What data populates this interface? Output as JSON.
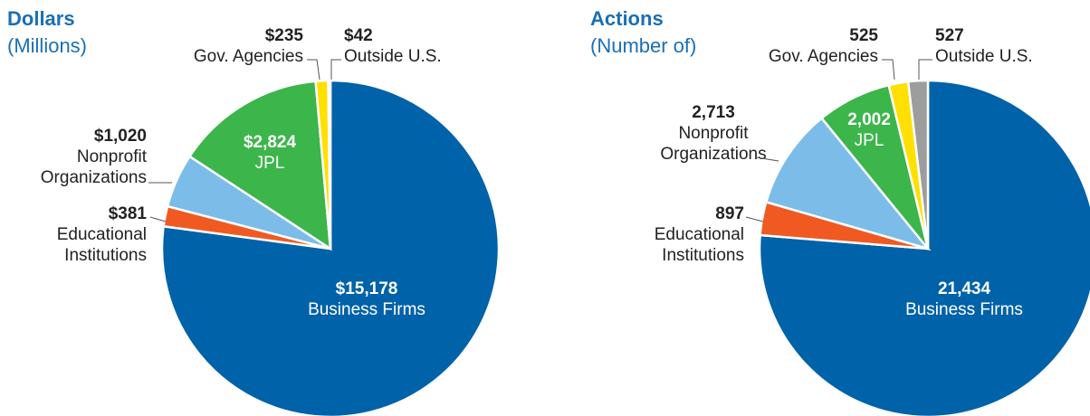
{
  "chart_data": [
    {
      "type": "pie",
      "title": "Dollars",
      "subtitle": "(Millions)",
      "categories": [
        "Business Firms",
        "Educational Institutions",
        "Nonprofit Organizations",
        "JPL",
        "Gov. Agencies",
        "Outside U.S."
      ],
      "values": [
        15178,
        381,
        1020,
        2824,
        235,
        42
      ],
      "value_labels": [
        "$15,178",
        "$381",
        "$1,020",
        "$2,824",
        "$235",
        "$42"
      ],
      "colors": [
        "#0062a8",
        "#f05a22",
        "#7bbde8",
        "#3cb54a",
        "#ffe000",
        "#9d9d9d"
      ]
    },
    {
      "type": "pie",
      "title": "Actions",
      "subtitle": "(Number of)",
      "categories": [
        "Business Firms",
        "Educational Institutions",
        "Nonprofit Organizations",
        "JPL",
        "Gov. Agencies",
        "Outside U.S."
      ],
      "values": [
        21434,
        897,
        2713,
        2002,
        525,
        527
      ],
      "value_labels": [
        "21,434",
        "897",
        "2,713",
        "2,002",
        "525",
        "527"
      ],
      "colors": [
        "#0062a8",
        "#f05a22",
        "#7bbde8",
        "#3cb54a",
        "#ffe000",
        "#9d9d9d"
      ]
    }
  ]
}
